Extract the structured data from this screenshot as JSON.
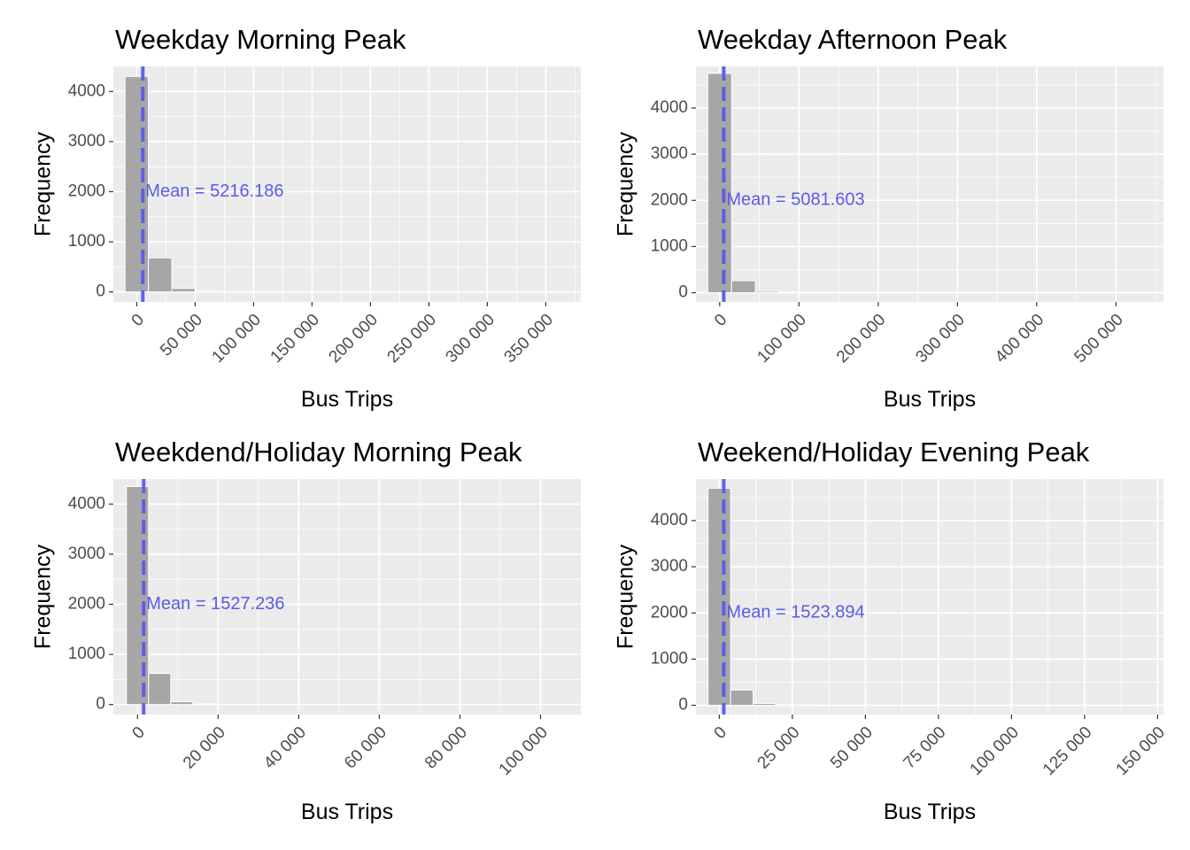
{
  "colors": {
    "panel_background": "#EBEBEB",
    "grid_line": "#FFFFFF",
    "bar_fill": "#A6A6A6",
    "bar_outline": "#FFFFFF",
    "mean_line": "#5B5BE6",
    "tick_text": "#4D4D4D",
    "title_text": "#000000"
  },
  "chart_data": [
    {
      "type": "bar",
      "subtype": "histogram",
      "title": "Weekday Morning Peak",
      "xlabel": "Bus Trips",
      "ylabel": "Frequency",
      "xlim": [
        -20000,
        380000
      ],
      "ylim": [
        -200,
        4500
      ],
      "x_ticks": [
        0,
        50000,
        100000,
        150000,
        200000,
        250000,
        300000,
        350000
      ],
      "x_tick_labels": [
        "0",
        "50 000",
        "100 000",
        "150 000",
        "200 000",
        "250 000",
        "300 000",
        "350 000"
      ],
      "y_ticks": [
        0,
        1000,
        2000,
        3000,
        4000
      ],
      "y_tick_labels": [
        "0",
        "1000",
        "2000",
        "3000",
        "4000"
      ],
      "bin_width": 20000,
      "bin_centers": [
        0,
        20000,
        40000,
        60000,
        80000,
        100000
      ],
      "values": [
        4300,
        680,
        70,
        20,
        8,
        4
      ],
      "mean": 5216.186,
      "mean_label": "Mean = 5216.186",
      "mean_label_y": 2000,
      "grid": true
    },
    {
      "type": "bar",
      "subtype": "histogram",
      "title": "Weekday Afternoon Peak",
      "xlabel": "Bus Trips",
      "ylabel": "Frequency",
      "xlim": [
        -30000,
        560000
      ],
      "ylim": [
        -200,
        4900
      ],
      "x_ticks": [
        0,
        100000,
        200000,
        300000,
        400000,
        500000
      ],
      "x_tick_labels": [
        "0",
        "100 000",
        "200 000",
        "300 000",
        "400 000",
        "500 000"
      ],
      "y_ticks": [
        0,
        1000,
        2000,
        3000,
        4000
      ],
      "y_tick_labels": [
        "0",
        "1000",
        "2000",
        "3000",
        "4000"
      ],
      "bin_width": 30000,
      "bin_centers": [
        0,
        30000,
        60000,
        90000,
        120000
      ],
      "values": [
        4750,
        260,
        30,
        12,
        5
      ],
      "mean": 5081.603,
      "mean_label": "Mean = 5081.603",
      "mean_label_y": 2000,
      "grid": true
    },
    {
      "type": "bar",
      "subtype": "histogram",
      "title": "Weekdend/Holiday Morning Peak",
      "xlabel": "Bus Trips",
      "ylabel": "Frequency",
      "xlim": [
        -6000,
        110000
      ],
      "ylim": [
        -200,
        4500
      ],
      "x_ticks": [
        0,
        20000,
        40000,
        60000,
        80000,
        100000
      ],
      "x_tick_labels": [
        "0",
        "20 000",
        "40 000",
        "60 000",
        "80 000",
        "100 000"
      ],
      "y_ticks": [
        0,
        1000,
        2000,
        3000,
        4000
      ],
      "y_tick_labels": [
        "0",
        "1000",
        "2000",
        "3000",
        "4000"
      ],
      "bin_width": 5500,
      "bin_centers": [
        0,
        5500,
        11000,
        16500,
        22000
      ],
      "values": [
        4350,
        620,
        55,
        15,
        5
      ],
      "mean": 1527.236,
      "mean_label": "Mean = 1527.236",
      "mean_label_y": 2000,
      "grid": true
    },
    {
      "type": "bar",
      "subtype": "histogram",
      "title": "Weekend/Holiday Evening Peak",
      "xlabel": "Bus Trips",
      "ylabel": "Frequency",
      "xlim": [
        -8000,
        152000
      ],
      "ylim": [
        -200,
        4900
      ],
      "x_ticks": [
        0,
        25000,
        50000,
        75000,
        100000,
        125000,
        150000
      ],
      "x_tick_labels": [
        "0",
        "25 000",
        "50 000",
        "75 000",
        "100 000",
        "125 000",
        "150 000"
      ],
      "y_ticks": [
        0,
        1000,
        2000,
        3000,
        4000
      ],
      "y_tick_labels": [
        "0",
        "1000",
        "2000",
        "3000",
        "4000"
      ],
      "bin_width": 7700,
      "bin_centers": [
        0,
        7700,
        15400,
        23100,
        30800
      ],
      "values": [
        4700,
        330,
        40,
        12,
        5
      ],
      "mean": 1523.894,
      "mean_label": "Mean = 1523.894",
      "mean_label_y": 2000,
      "grid": true
    }
  ]
}
